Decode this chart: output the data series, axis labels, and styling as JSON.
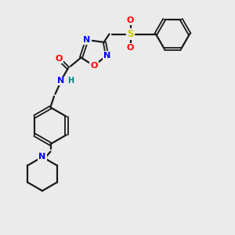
{
  "background_color": "#ebebeb",
  "bond_color": "#1a1a1a",
  "atom_colors": {
    "N": "#0000ff",
    "O": "#ff0000",
    "S": "#cccc00",
    "H": "#008080",
    "C": "#1a1a1a"
  },
  "figsize": [
    3.0,
    3.0
  ],
  "dpi": 100
}
